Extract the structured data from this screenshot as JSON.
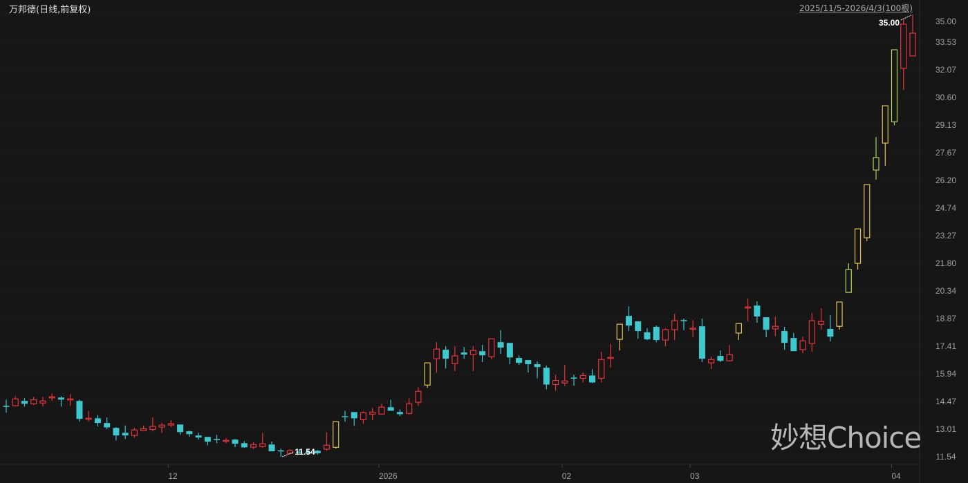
{
  "header": {
    "title": "万邦德(日线,前复权)",
    "range": "2025/11/5-2026/4/3(100根)"
  },
  "watermark": "妙想Choice",
  "chart_data": {
    "type": "candlestick",
    "yticks": [
      "35.00",
      "33.53",
      "32.07",
      "30.60",
      "29.13",
      "27.67",
      "26.20",
      "24.74",
      "23.27",
      "21.80",
      "20.34",
      "18.87",
      "17.41",
      "15.94",
      "14.47",
      "13.01",
      "11.54"
    ],
    "ylim": [
      11.54,
      35.0
    ],
    "grid": true,
    "xticks": [
      {
        "label": "12",
        "index": 18
      },
      {
        "label": "2026",
        "index": 41
      },
      {
        "label": "02",
        "index": 61
      },
      {
        "label": "03",
        "index": 75
      },
      {
        "label": "04",
        "index": 97
      }
    ],
    "annotations": {
      "max": {
        "label": "35.00",
        "index": 99,
        "value": 35.0
      },
      "min": {
        "label": "11.54",
        "index": 30,
        "value": 11.54
      }
    },
    "colors": {
      "up": "#e8343c",
      "down": "#3ec9d0",
      "limit": "#e3c34a",
      "limit2": "#a9d65a",
      "grid": "#333333"
    },
    "candle_fields": [
      "open",
      "high",
      "low",
      "close",
      "style"
    ],
    "candles": [
      [
        14.24,
        14.57,
        13.88,
        14.24,
        "down"
      ],
      [
        14.24,
        14.75,
        14.2,
        14.61,
        "up"
      ],
      [
        14.5,
        14.65,
        14.2,
        14.35,
        "down"
      ],
      [
        14.35,
        14.72,
        14.28,
        14.57,
        "up"
      ],
      [
        14.39,
        14.72,
        14.2,
        14.5,
        "up"
      ],
      [
        14.68,
        14.9,
        14.5,
        14.72,
        "up"
      ],
      [
        14.68,
        14.75,
        14.2,
        14.57,
        "down"
      ],
      [
        14.57,
        14.87,
        14.24,
        14.61,
        "up"
      ],
      [
        14.5,
        14.57,
        13.4,
        13.55,
        "down"
      ],
      [
        13.55,
        13.98,
        13.42,
        13.58,
        "up"
      ],
      [
        13.58,
        13.75,
        13.15,
        13.33,
        "down"
      ],
      [
        13.33,
        13.62,
        13.0,
        13.1,
        "down"
      ],
      [
        13.07,
        13.11,
        12.4,
        12.67,
        "down"
      ],
      [
        12.81,
        13.2,
        12.48,
        12.67,
        "down"
      ],
      [
        12.67,
        13.07,
        12.55,
        12.96,
        "up"
      ],
      [
        12.92,
        13.2,
        12.88,
        13.03,
        "up"
      ],
      [
        12.99,
        13.62,
        12.88,
        13.15,
        "up"
      ],
      [
        13.11,
        13.33,
        12.81,
        13.22,
        "up"
      ],
      [
        13.22,
        13.47,
        13.11,
        13.29,
        "up"
      ],
      [
        13.25,
        13.25,
        12.7,
        12.85,
        "down"
      ],
      [
        12.89,
        12.92,
        12.6,
        12.74,
        "down"
      ],
      [
        12.67,
        12.81,
        12.45,
        12.56,
        "down"
      ],
      [
        12.59,
        12.59,
        12.15,
        12.34,
        "down"
      ],
      [
        12.48,
        12.7,
        12.26,
        12.45,
        "down"
      ],
      [
        12.37,
        12.52,
        12.26,
        12.41,
        "up"
      ],
      [
        12.45,
        12.48,
        12.05,
        12.23,
        "down"
      ],
      [
        12.26,
        12.37,
        12.01,
        12.04,
        "down"
      ],
      [
        12.05,
        12.3,
        11.94,
        12.19,
        "up"
      ],
      [
        12.08,
        12.81,
        12.01,
        12.23,
        "up"
      ],
      [
        12.19,
        12.34,
        11.83,
        11.83,
        "down"
      ],
      [
        11.88,
        11.97,
        11.54,
        11.86,
        "down"
      ],
      [
        11.72,
        11.94,
        11.68,
        11.86,
        "up"
      ],
      [
        11.81,
        11.94,
        11.68,
        11.79,
        "down"
      ],
      [
        11.79,
        11.9,
        11.68,
        11.75,
        "down"
      ],
      [
        11.86,
        11.9,
        11.65,
        11.72,
        "down"
      ],
      [
        11.94,
        12.84,
        11.86,
        12.15,
        "up"
      ],
      [
        12.04,
        13.4,
        11.97,
        13.4,
        "limit"
      ],
      [
        13.69,
        13.98,
        13.4,
        13.66,
        "down"
      ],
      [
        13.91,
        13.91,
        13.18,
        13.58,
        "down"
      ],
      [
        13.51,
        13.95,
        13.29,
        13.88,
        "up"
      ],
      [
        13.8,
        14.13,
        13.47,
        13.91,
        "up"
      ],
      [
        13.8,
        14.35,
        13.8,
        14.17,
        "up"
      ],
      [
        14.17,
        14.57,
        13.98,
        13.98,
        "down"
      ],
      [
        13.91,
        14.05,
        13.69,
        13.8,
        "down"
      ],
      [
        13.84,
        14.65,
        13.77,
        14.35,
        "up"
      ],
      [
        14.43,
        15.23,
        14.24,
        15.01,
        "up"
      ],
      [
        15.34,
        16.52,
        15.19,
        16.52,
        "limit"
      ],
      [
        16.74,
        17.62,
        16.0,
        17.25,
        "up"
      ],
      [
        17.22,
        17.4,
        16.23,
        16.74,
        "down"
      ],
      [
        16.48,
        17.4,
        16.08,
        16.89,
        "up"
      ],
      [
        17.07,
        17.36,
        16.74,
        16.96,
        "down"
      ],
      [
        16.96,
        17.4,
        16.08,
        17.18,
        "up"
      ],
      [
        17.14,
        17.47,
        16.56,
        16.92,
        "down"
      ],
      [
        16.85,
        17.8,
        16.7,
        17.8,
        "up"
      ],
      [
        17.62,
        18.25,
        17.0,
        17.33,
        "down"
      ],
      [
        17.58,
        17.58,
        16.45,
        16.81,
        "down"
      ],
      [
        16.78,
        16.92,
        16.41,
        16.52,
        "down"
      ],
      [
        16.67,
        16.67,
        16.01,
        16.45,
        "down"
      ],
      [
        16.45,
        16.59,
        15.7,
        16.3,
        "down"
      ],
      [
        16.26,
        16.37,
        15.12,
        15.37,
        "down"
      ],
      [
        15.37,
        15.89,
        15.04,
        15.59,
        "up"
      ],
      [
        15.45,
        16.41,
        15.3,
        15.56,
        "up"
      ],
      [
        15.74,
        15.89,
        15.3,
        15.7,
        "down"
      ],
      [
        15.7,
        16.01,
        15.48,
        15.85,
        "up"
      ],
      [
        15.85,
        16.19,
        15.45,
        15.48,
        "down"
      ],
      [
        15.7,
        17.11,
        15.48,
        16.7,
        "up"
      ],
      [
        16.78,
        17.54,
        16.26,
        16.81,
        "up"
      ],
      [
        17.77,
        18.57,
        17.18,
        18.57,
        "limit"
      ],
      [
        19.01,
        19.52,
        18.21,
        18.5,
        "down"
      ],
      [
        18.72,
        18.72,
        17.8,
        18.21,
        "down"
      ],
      [
        18.14,
        18.36,
        17.73,
        17.77,
        "down"
      ],
      [
        18.43,
        18.5,
        17.62,
        17.73,
        "down"
      ],
      [
        17.73,
        18.36,
        17.4,
        18.28,
        "up"
      ],
      [
        18.28,
        19.12,
        17.73,
        18.76,
        "up"
      ],
      [
        18.79,
        18.87,
        18.25,
        18.76,
        "down"
      ],
      [
        18.32,
        18.79,
        17.88,
        18.36,
        "up"
      ],
      [
        18.46,
        18.87,
        16.56,
        16.74,
        "down"
      ],
      [
        16.52,
        16.85,
        16.19,
        16.7,
        "up"
      ],
      [
        16.89,
        17.18,
        16.56,
        16.63,
        "down"
      ],
      [
        16.63,
        17.47,
        16.59,
        16.96,
        "up"
      ],
      [
        18.1,
        18.61,
        17.73,
        18.61,
        "limit"
      ],
      [
        19.45,
        19.93,
        18.72,
        19.49,
        "up"
      ],
      [
        19.56,
        19.78,
        18.65,
        18.98,
        "down"
      ],
      [
        18.94,
        18.94,
        17.88,
        18.28,
        "down"
      ],
      [
        18.32,
        18.98,
        17.95,
        18.46,
        "up"
      ],
      [
        18.21,
        18.43,
        17.22,
        17.58,
        "down"
      ],
      [
        17.84,
        18.1,
        17.14,
        17.14,
        "down"
      ],
      [
        17.22,
        17.91,
        17.03,
        17.69,
        "up"
      ],
      [
        17.55,
        19.16,
        17.11,
        18.76,
        "up"
      ],
      [
        18.57,
        19.42,
        18.28,
        18.72,
        "up"
      ],
      [
        18.32,
        19.05,
        17.66,
        17.91,
        "down"
      ],
      [
        18.46,
        19.75,
        18.28,
        19.75,
        "limit"
      ],
      [
        20.26,
        21.8,
        20.26,
        21.47,
        "limit2"
      ],
      [
        21.8,
        23.63,
        21.47,
        23.63,
        "limit"
      ],
      [
        23.16,
        25.98,
        22.98,
        25.98,
        "limit"
      ],
      [
        26.75,
        28.5,
        26.24,
        27.41,
        "limit2"
      ],
      [
        28.18,
        30.16,
        26.98,
        30.16,
        "limit"
      ],
      [
        29.31,
        33.13,
        29.13,
        33.13,
        "limit2"
      ],
      [
        32.14,
        34.74,
        31.0,
        34.49,
        "up"
      ],
      [
        32.8,
        35.0,
        32.8,
        34.01,
        "up"
      ]
    ]
  }
}
